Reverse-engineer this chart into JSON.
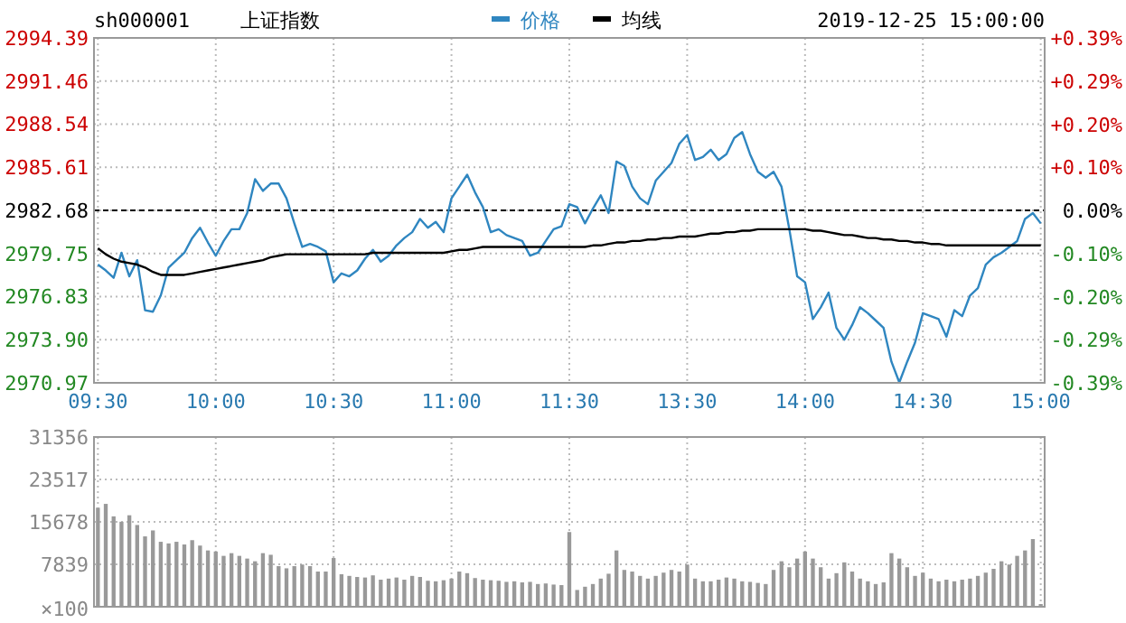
{
  "chart_data": [
    {
      "type": "line",
      "title": "sh000001",
      "subtitle": "上证指数",
      "annotations": [
        "2019-12-25 15:00:00"
      ],
      "legend": "top",
      "grid": true,
      "categories": [
        "09:30",
        null,
        null,
        null,
        null,
        null,
        null,
        null,
        null,
        null,
        null,
        null,
        null,
        null,
        null,
        "10:00",
        null,
        null,
        null,
        null,
        null,
        null,
        null,
        null,
        null,
        null,
        null,
        null,
        null,
        null,
        "10:30",
        null,
        null,
        null,
        null,
        null,
        null,
        null,
        null,
        null,
        null,
        null,
        null,
        null,
        null,
        "11:00",
        null,
        null,
        null,
        null,
        null,
        null,
        null,
        null,
        null,
        null,
        null,
        null,
        null,
        null,
        "11:30",
        null,
        null,
        null,
        null,
        null,
        null,
        null,
        null,
        null,
        null,
        null,
        null,
        null,
        null,
        "13:30",
        null,
        null,
        null,
        null,
        null,
        null,
        null,
        null,
        null,
        null,
        null,
        null,
        null,
        null,
        "14:00",
        null,
        null,
        null,
        null,
        null,
        null,
        null,
        null,
        null,
        null,
        null,
        null,
        null,
        null,
        "14:30",
        null,
        null,
        null,
        null,
        null,
        null,
        null,
        null,
        null,
        null,
        null,
        null,
        null,
        null,
        "15:00"
      ],
      "ylim": [
        2970.97,
        2994.39
      ],
      "yticks": [
        2970.97,
        2976.83,
        {
          "value": 2973.9,
          "label": "2973.90"
        },
        2979.75,
        2982.68,
        2985.61,
        2988.54,
        2991.46,
        2994.39
      ],
      "y2lim": [
        -0.392,
        0.392
      ],
      "y2ticks": [
        {
          "value": 0.392,
          "label": "+0.39%"
        },
        {
          "value": 0.294,
          "label": "+0.29%"
        },
        {
          "value": 0.196,
          "label": "+0.20%"
        },
        {
          "value": 0.098,
          "label": "+0.10%"
        },
        {
          "value": 0,
          "label": "0.00%"
        },
        {
          "value": -0.098,
          "label": "-0.10%"
        },
        {
          "value": -0.196,
          "label": "-0.20%"
        },
        {
          "value": -0.294,
          "label": "-0.29%"
        },
        {
          "value": -0.392,
          "label": "-0.39%"
        }
      ],
      "ref_lines": [
        {
          "axis": "y",
          "value": 2982.68,
          "color": "#000000",
          "line_style": "dashed"
        }
      ],
      "series": [
        {
          "name": "价格",
          "color": "#2f86c0",
          "values": [
            2979.0,
            2978.6,
            2978.1,
            2979.8,
            2978.2,
            2979.3,
            2975.9,
            2975.8,
            2976.9,
            2978.8,
            2979.3,
            2979.8,
            2980.8,
            2981.5,
            2980.5,
            2979.6,
            2980.6,
            2981.4,
            2981.4,
            2982.5,
            2984.8,
            2984.0,
            2984.5,
            2984.5,
            2983.5,
            2981.8,
            2980.2,
            2980.4,
            2980.2,
            2979.9,
            2977.8,
            2978.4,
            2978.2,
            2978.6,
            2979.4,
            2980.0,
            2979.2,
            2979.6,
            2980.3,
            2980.8,
            2981.2,
            2982.1,
            2981.5,
            2981.9,
            2981.2,
            2983.5,
            2984.3,
            2985.1,
            2983.9,
            2982.9,
            2981.2,
            2981.4,
            2981.0,
            2980.8,
            2980.6,
            2979.6,
            2979.8,
            2980.6,
            2981.4,
            2981.6,
            2983.1,
            2982.9,
            2981.8,
            2982.8,
            2983.7,
            2982.5,
            2986.0,
            2985.7,
            2984.3,
            2983.5,
            2983.1,
            2984.7,
            2985.3,
            2985.9,
            2987.2,
            2987.8,
            2986.1,
            2986.3,
            2986.8,
            2986.1,
            2986.5,
            2987.6,
            2988.0,
            2986.5,
            2985.3,
            2984.9,
            2985.3,
            2984.3,
            2981.4,
            2978.2,
            2977.8,
            2975.3,
            2976.1,
            2977.1,
            2974.7,
            2973.9,
            2974.9,
            2976.1,
            2975.7,
            2975.2,
            2974.7,
            2972.4,
            2971.0,
            2972.4,
            2973.7,
            2975.7,
            2975.5,
            2975.3,
            2974.1,
            2975.9,
            2975.5,
            2976.9,
            2977.4,
            2979.0,
            2979.5,
            2979.8,
            2980.2,
            2980.6,
            2982.1,
            2982.5,
            2981.8
          ]
        },
        {
          "name": "均线",
          "color": "#000000",
          "values": [
            2980.1,
            2979.7,
            2979.4,
            2979.2,
            2979.1,
            2979.0,
            2978.8,
            2978.5,
            2978.3,
            2978.3,
            2978.3,
            2978.3,
            2978.4,
            2978.5,
            2978.6,
            2978.7,
            2978.8,
            2978.9,
            2979.0,
            2979.1,
            2979.2,
            2979.3,
            2979.5,
            2979.6,
            2979.7,
            2979.7,
            2979.7,
            2979.7,
            2979.7,
            2979.7,
            2979.7,
            2979.7,
            2979.7,
            2979.7,
            2979.7,
            2979.8,
            2979.8,
            2979.8,
            2979.8,
            2979.8,
            2979.8,
            2979.8,
            2979.8,
            2979.8,
            2979.8,
            2979.9,
            2980.0,
            2980.0,
            2980.1,
            2980.2,
            2980.2,
            2980.2,
            2980.2,
            2980.2,
            2980.2,
            2980.2,
            2980.2,
            2980.2,
            2980.2,
            2980.2,
            2980.2,
            2980.2,
            2980.2,
            2980.3,
            2980.3,
            2980.4,
            2980.5,
            2980.5,
            2980.6,
            2980.6,
            2980.7,
            2980.7,
            2980.8,
            2980.8,
            2980.9,
            2980.9,
            2980.9,
            2981.0,
            2981.1,
            2981.1,
            2981.2,
            2981.2,
            2981.3,
            2981.3,
            2981.4,
            2981.4,
            2981.4,
            2981.4,
            2981.4,
            2981.4,
            2981.4,
            2981.3,
            2981.3,
            2981.2,
            2981.1,
            2981.0,
            2981.0,
            2980.9,
            2980.8,
            2980.8,
            2980.7,
            2980.7,
            2980.6,
            2980.6,
            2980.5,
            2980.5,
            2980.4,
            2980.4,
            2980.3,
            2980.3,
            2980.3,
            2980.3,
            2980.3,
            2980.3,
            2980.3,
            2980.3,
            2980.3,
            2980.3,
            2980.3,
            2980.3,
            2980.3
          ]
        }
      ]
    },
    {
      "type": "bar",
      "color": "#999999",
      "grid": true,
      "tick_labels": "y",
      "ylabel": "×100",
      "categories": [
        null,
        null,
        null,
        null,
        null,
        null,
        null,
        null,
        null,
        null,
        null,
        null,
        null,
        null,
        null,
        null,
        null,
        null,
        null,
        null,
        null,
        null,
        null,
        null,
        null,
        null,
        null,
        null,
        null,
        null,
        null,
        null,
        null,
        null,
        null,
        null,
        null,
        null,
        null,
        null,
        null,
        null,
        null,
        null,
        null,
        null,
        null,
        null,
        null,
        null,
        null,
        null,
        null,
        null,
        null,
        null,
        null,
        null,
        null,
        null,
        null,
        null,
        null,
        null,
        null,
        null,
        null,
        null,
        null,
        null,
        null,
        null,
        null,
        null,
        null,
        null,
        null,
        null,
        null,
        null,
        null,
        null,
        null,
        null,
        null,
        null,
        null,
        null,
        null,
        null,
        null,
        null,
        null,
        null,
        null,
        null,
        null,
        null,
        null,
        null,
        null,
        null,
        null,
        null,
        null,
        null,
        null,
        null,
        null,
        null,
        null,
        null,
        null,
        null,
        null,
        null,
        null,
        null,
        null,
        null,
        null
      ],
      "ylim": [
        0,
        31356
      ],
      "yticks": [
        7839,
        15678,
        23517,
        31356
      ],
      "values": [
        18300,
        19000,
        16700,
        15700,
        16900,
        15100,
        13000,
        14100,
        12000,
        11700,
        12000,
        11500,
        12300,
        11300,
        10400,
        10200,
        9400,
        9900,
        9400,
        8900,
        8400,
        9900,
        9600,
        7500,
        7100,
        7500,
        7800,
        7500,
        6500,
        6500,
        9000,
        6000,
        5700,
        5500,
        5400,
        5800,
        5000,
        5200,
        5400,
        5000,
        5700,
        5500,
        4800,
        4700,
        4900,
        5200,
        6500,
        6200,
        5300,
        5000,
        4900,
        4800,
        4600,
        4700,
        4500,
        4600,
        4200,
        4300,
        4100,
        4000,
        13800,
        3100,
        3700,
        4200,
        5200,
        6100,
        10400,
        6800,
        6500,
        5700,
        5200,
        5700,
        6300,
        6800,
        6500,
        7800,
        5200,
        4700,
        4700,
        5000,
        5400,
        5200,
        4700,
        4600,
        4400,
        4200,
        6800,
        8400,
        7300,
        8900,
        10200,
        8900,
        7300,
        5200,
        6200,
        8200,
        6500,
        5200,
        4700,
        4200,
        4500,
        9900,
        8900,
        7300,
        5700,
        6300,
        5200,
        4700,
        5000,
        4700,
        5000,
        5200,
        5700,
        6300,
        7000,
        8400,
        7800,
        9400,
        10400,
        12500,
        500
      ]
    }
  ]
}
